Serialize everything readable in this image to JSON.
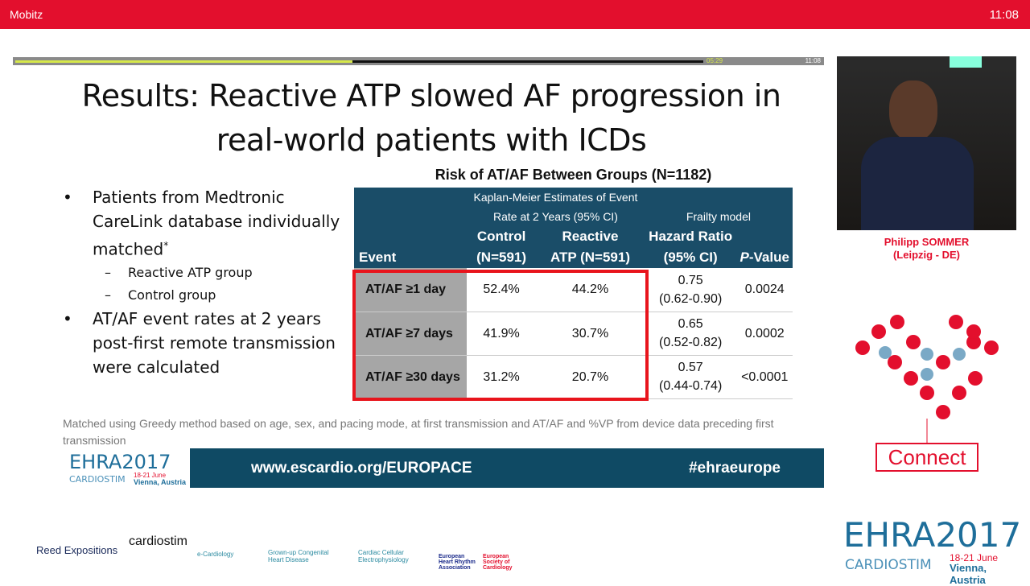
{
  "window": {
    "app_name": "Mobitz",
    "clock": "11:08"
  },
  "player": {
    "elapsed": "05:29",
    "duration": "11:08",
    "progress_percent": 49
  },
  "slide": {
    "title_line1": "Results: Reactive ATP slowed AF progression in",
    "title_line2": "real-world patients with ICDs",
    "bullets": [
      {
        "text": "Patients from Medtronic CareLink database individually matched",
        "sup": "*",
        "sub": [
          "Reactive ATP group",
          "Control group"
        ]
      },
      {
        "text": "AT/AF event rates at 2 years post-first remote transmission were calculated"
      }
    ],
    "table_title": "Risk of AT/AF Between Groups (N=1182)",
    "table_header": {
      "km1": "Kaplan-Meier Estimates of Event",
      "km2": "Rate at 2 Years  (95% CI)",
      "frailty": "Frailty model",
      "event": "Event",
      "control1": "Control",
      "control2": "(N=591)",
      "reactive1": "Reactive",
      "reactive2": "ATP (N=591)",
      "hr1": "Hazard Ratio",
      "hr2": "(95% CI)",
      "p_italic": "P",
      "p_rest": "-Value"
    },
    "rows": [
      {
        "event": "AT/AF ≥1 day",
        "control": "52.4%",
        "reactive": "44.2%",
        "hr": "0.75",
        "ci": "(0.62-0.90)",
        "p": "0.0024"
      },
      {
        "event": "AT/AF ≥7 days",
        "control": "41.9%",
        "reactive": "30.7%",
        "hr": "0.65",
        "ci": "(0.52-0.82)",
        "p": "0.0002"
      },
      {
        "event": "AT/AF ≥30 days",
        "control": "31.2%",
        "reactive": "20.7%",
        "hr": "0.57",
        "ci": "(0.44-0.74)",
        "p": "<0.0001"
      }
    ],
    "footnote": "Matched using Greedy method based on age, sex,  and pacing mode, at first transmission and AT/AF and %VP from device data preceding first transmission",
    "url": "www.escardio.org/EUROPACE",
    "hashtag": "#ehraeurope",
    "logo": {
      "ehra": "EHRA2017",
      "cardiostim": "CARDIOSTIM",
      "dates": "18-21 June",
      "place": "Vienna, Austria"
    }
  },
  "speaker": {
    "name": "Philipp SOMMER",
    "affiliation": "(Leipzig - DE)"
  },
  "connect_label": "Connect",
  "sponsors": [
    "Reed Expositions",
    "cardiostim",
    "e-Cardiology",
    "Grown-up Congenital Heart Disease",
    "Cardiac Cellular Electrophysiology",
    "European Heart Rhythm Association",
    "European Society of Cardiology"
  ],
  "colors": {
    "brand_red": "#e30f2d",
    "table_header": "#1a4d68",
    "highlight_box": "#e8141c"
  }
}
